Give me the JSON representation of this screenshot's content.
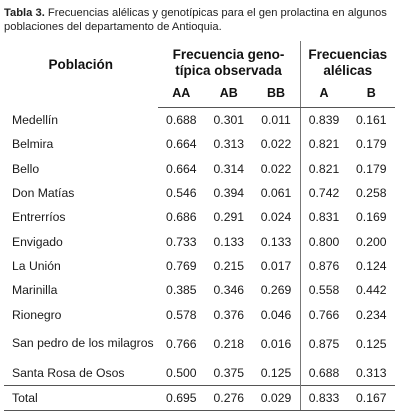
{
  "caption": {
    "label": "Tabla 3.",
    "text": " Frecuencias alélicas y genotípicas para el gen prolactina en algunos poblaciones del departamento de Antioquia."
  },
  "table": {
    "header": {
      "population": "Población",
      "genotype_group": "Frecuencia geno-típica observada",
      "allele_group": "Frecuencias alélicas",
      "genotype_cols": [
        "AA",
        "AB",
        "BB"
      ],
      "allele_cols": [
        "A",
        "B"
      ]
    },
    "rows": [
      {
        "name": "Medellín",
        "values": [
          "0.688",
          "0.301",
          "0.011",
          "0.839",
          "0.161"
        ]
      },
      {
        "name": "Belmira",
        "values": [
          "0.664",
          "0.313",
          "0.022",
          "0.821",
          "0.179"
        ]
      },
      {
        "name": "Bello",
        "values": [
          "0.664",
          "0.314",
          "0.022",
          "0.821",
          "0.179"
        ]
      },
      {
        "name": "Don Matías",
        "values": [
          "0.546",
          "0.394",
          "0.061",
          "0.742",
          "0.258"
        ]
      },
      {
        "name": "Entrerríos",
        "values": [
          "0.686",
          "0.291",
          "0.024",
          "0.831",
          "0.169"
        ]
      },
      {
        "name": "Envigado",
        "values": [
          "0.733",
          "0.133",
          "0.133",
          "0.800",
          "0.200"
        ]
      },
      {
        "name": "La Unión",
        "values": [
          "0.769",
          "0.215",
          "0.017",
          "0.876",
          "0.124"
        ]
      },
      {
        "name": "Marinilla",
        "values": [
          "0.385",
          "0.346",
          "0.269",
          "0.558",
          "0.442"
        ]
      },
      {
        "name": "Rionegro",
        "values": [
          "0.578",
          "0.376",
          "0.046",
          "0.766",
          "0.234"
        ]
      },
      {
        "name": "San pedro de los milagros",
        "values": [
          "0.766",
          "0.218",
          "0.016",
          "0.875",
          "0.125"
        ]
      },
      {
        "name": "Santa Rosa de Osos",
        "values": [
          "0.500",
          "0.375",
          "0.125",
          "0.688",
          "0.313"
        ]
      }
    ],
    "total": {
      "name": "Total",
      "values": [
        "0.695",
        "0.276",
        "0.029",
        "0.833",
        "0.167"
      ]
    }
  }
}
